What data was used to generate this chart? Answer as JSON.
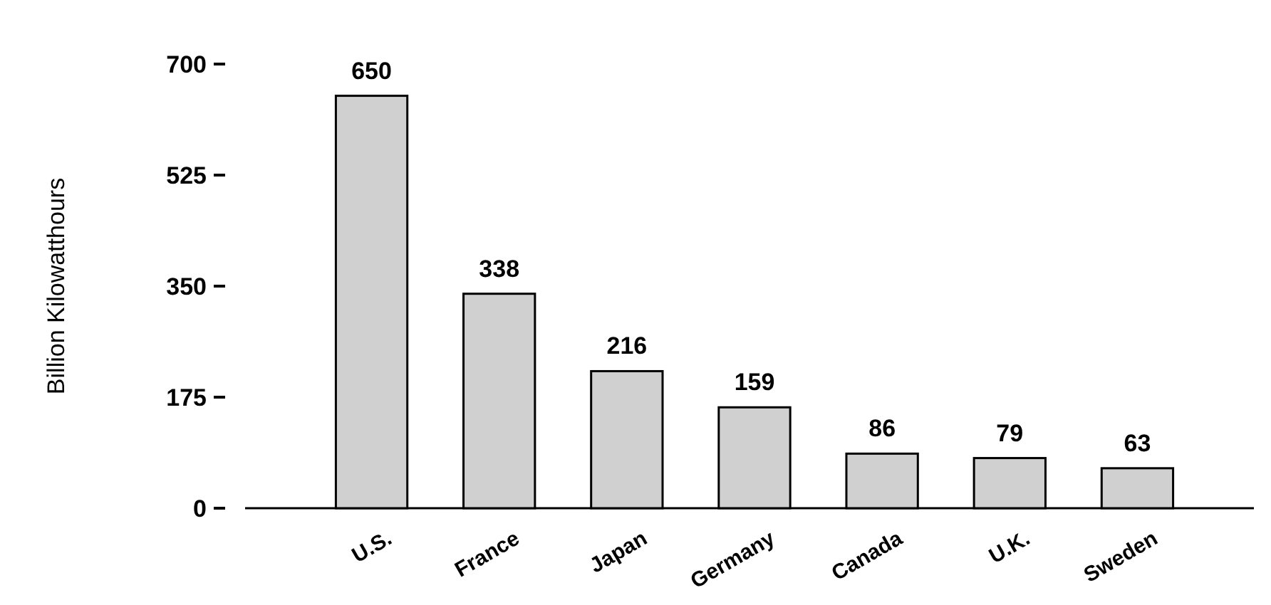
{
  "chart_data": {
    "type": "bar",
    "ylabel": "Billion Kilowatthours",
    "categories": [
      "U.S.",
      "France",
      "Japan",
      "Germany",
      "Canada",
      "U.K.",
      "Sweden"
    ],
    "values": [
      650,
      338,
      216,
      159,
      86,
      79,
      63
    ],
    "color": "#d0d0d0",
    "ylim": [
      0,
      700
    ],
    "yticks": [
      0,
      175,
      350,
      525,
      700
    ],
    "data_labels": true
  }
}
